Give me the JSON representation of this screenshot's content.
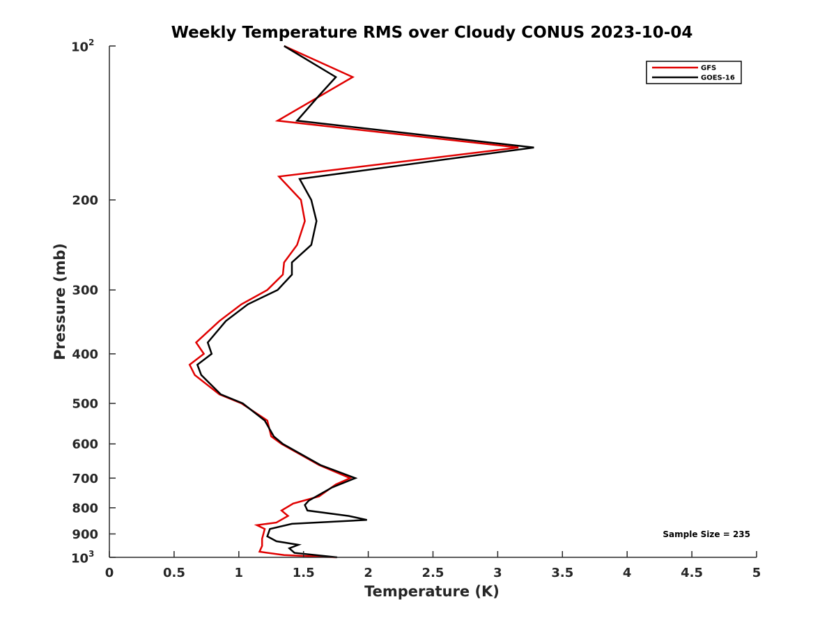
{
  "chart_data": {
    "type": "line",
    "title": "Weekly Temperature RMS over Cloudy CONUS 2023-10-04",
    "xlabel": "Temperature (K)",
    "ylabel": "Pressure (mb)",
    "xlim": [
      0,
      5
    ],
    "ylim": [
      100,
      1000
    ],
    "y_scale": "log",
    "y_reversed": true,
    "grid": false,
    "legend_position": "top-right",
    "x_ticks": [
      {
        "value": 0,
        "label": "0"
      },
      {
        "value": 0.5,
        "label": "0.5"
      },
      {
        "value": 1,
        "label": "1"
      },
      {
        "value": 1.5,
        "label": "1.5"
      },
      {
        "value": 2,
        "label": "2"
      },
      {
        "value": 2.5,
        "label": "2.5"
      },
      {
        "value": 3,
        "label": "3"
      },
      {
        "value": 3.5,
        "label": "3.5"
      },
      {
        "value": 4,
        "label": "4"
      },
      {
        "value": 4.5,
        "label": "4.5"
      },
      {
        "value": 5,
        "label": "5"
      }
    ],
    "y_ticks": [
      {
        "value": 100,
        "base": "10",
        "exp": "2"
      },
      {
        "value": 200,
        "label": "200"
      },
      {
        "value": 300,
        "label": "300"
      },
      {
        "value": 400,
        "label": "400"
      },
      {
        "value": 500,
        "label": "500"
      },
      {
        "value": 600,
        "label": "600"
      },
      {
        "value": 700,
        "label": "700"
      },
      {
        "value": 800,
        "label": "800"
      },
      {
        "value": 900,
        "label": "900"
      },
      {
        "value": 1000,
        "base": "10",
        "exp": "3"
      }
    ],
    "annotation": "Sample Size = 235",
    "series": [
      {
        "name": "GFS",
        "color": "#e00000",
        "points": [
          {
            "x": 1.35,
            "y": 100
          },
          {
            "x": 1.88,
            "y": 115
          },
          {
            "x": 1.3,
            "y": 140
          },
          {
            "x": 3.16,
            "y": 158
          },
          {
            "x": 1.31,
            "y": 180
          },
          {
            "x": 1.48,
            "y": 200
          },
          {
            "x": 1.51,
            "y": 220
          },
          {
            "x": 1.45,
            "y": 245
          },
          {
            "x": 1.35,
            "y": 265
          },
          {
            "x": 1.34,
            "y": 280
          },
          {
            "x": 1.22,
            "y": 300
          },
          {
            "x": 1.02,
            "y": 320
          },
          {
            "x": 0.85,
            "y": 345
          },
          {
            "x": 0.67,
            "y": 380
          },
          {
            "x": 0.73,
            "y": 400
          },
          {
            "x": 0.62,
            "y": 420
          },
          {
            "x": 0.66,
            "y": 440
          },
          {
            "x": 0.85,
            "y": 480
          },
          {
            "x": 1.02,
            "y": 500
          },
          {
            "x": 1.22,
            "y": 540
          },
          {
            "x": 1.25,
            "y": 580
          },
          {
            "x": 1.33,
            "y": 600
          },
          {
            "x": 1.62,
            "y": 660
          },
          {
            "x": 1.86,
            "y": 700
          },
          {
            "x": 1.75,
            "y": 720
          },
          {
            "x": 1.62,
            "y": 760
          },
          {
            "x": 1.42,
            "y": 785
          },
          {
            "x": 1.33,
            "y": 810
          },
          {
            "x": 1.38,
            "y": 830
          },
          {
            "x": 1.29,
            "y": 855
          },
          {
            "x": 1.14,
            "y": 865
          },
          {
            "x": 1.2,
            "y": 880
          },
          {
            "x": 1.18,
            "y": 920
          },
          {
            "x": 1.18,
            "y": 950
          },
          {
            "x": 1.16,
            "y": 975
          },
          {
            "x": 1.35,
            "y": 990
          },
          {
            "x": 1.75,
            "y": 1000
          }
        ]
      },
      {
        "name": "GOES-16",
        "color": "#000000",
        "points": [
          {
            "x": 1.35,
            "y": 100
          },
          {
            "x": 1.75,
            "y": 115
          },
          {
            "x": 1.62,
            "y": 125
          },
          {
            "x": 1.45,
            "y": 140
          },
          {
            "x": 3.28,
            "y": 158
          },
          {
            "x": 1.47,
            "y": 182
          },
          {
            "x": 1.56,
            "y": 200
          },
          {
            "x": 1.6,
            "y": 220
          },
          {
            "x": 1.56,
            "y": 245
          },
          {
            "x": 1.41,
            "y": 265
          },
          {
            "x": 1.41,
            "y": 280
          },
          {
            "x": 1.3,
            "y": 300
          },
          {
            "x": 1.07,
            "y": 320
          },
          {
            "x": 0.9,
            "y": 345
          },
          {
            "x": 0.76,
            "y": 380
          },
          {
            "x": 0.79,
            "y": 400
          },
          {
            "x": 0.68,
            "y": 420
          },
          {
            "x": 0.71,
            "y": 440
          },
          {
            "x": 0.86,
            "y": 480
          },
          {
            "x": 1.03,
            "y": 500
          },
          {
            "x": 1.2,
            "y": 540
          },
          {
            "x": 1.27,
            "y": 580
          },
          {
            "x": 1.34,
            "y": 600
          },
          {
            "x": 1.63,
            "y": 660
          },
          {
            "x": 1.9,
            "y": 700
          },
          {
            "x": 1.72,
            "y": 730
          },
          {
            "x": 1.54,
            "y": 775
          },
          {
            "x": 1.51,
            "y": 790
          },
          {
            "x": 1.53,
            "y": 810
          },
          {
            "x": 1.85,
            "y": 830
          },
          {
            "x": 1.99,
            "y": 845
          },
          {
            "x": 1.41,
            "y": 860
          },
          {
            "x": 1.24,
            "y": 880
          },
          {
            "x": 1.22,
            "y": 910
          },
          {
            "x": 1.29,
            "y": 930
          },
          {
            "x": 1.46,
            "y": 945
          },
          {
            "x": 1.39,
            "y": 960
          },
          {
            "x": 1.43,
            "y": 980
          },
          {
            "x": 1.76,
            "y": 1000
          }
        ]
      }
    ]
  }
}
